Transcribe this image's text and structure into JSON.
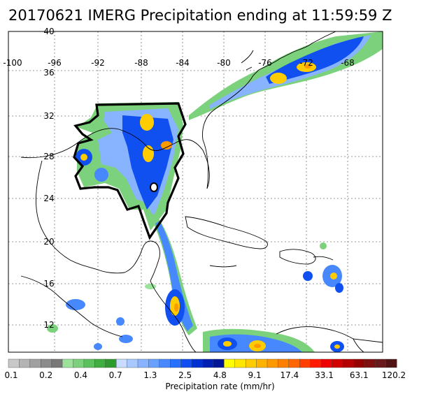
{
  "title": "20170621 IMERG Precipitation ending at 11:59:59 Z",
  "map": {
    "lon_labels": [
      "-100",
      "-96",
      "-92",
      "-88",
      "-84",
      "-80",
      "-76",
      "-72",
      "-68"
    ],
    "lat_labels": [
      "40",
      "36",
      "32",
      "28",
      "24",
      "20",
      "16",
      "12"
    ],
    "lon_range": [
      -100,
      -66
    ],
    "lat_range": [
      10,
      40
    ]
  },
  "colorbar": {
    "title": "Precipitation rate (mm/hr)",
    "labels": [
      "0.1",
      "0.2",
      "0.4",
      "0.7",
      "1.3",
      "2.5",
      "4.8",
      "9.1",
      "17.4",
      "33.1",
      "63.1",
      "120.2"
    ],
    "colors": [
      "#c8c8c8",
      "#b4b4b4",
      "#a0a0a0",
      "#8c8c8c",
      "#787878",
      "#9be39b",
      "#7cd27c",
      "#5cc05c",
      "#40ad40",
      "#2d9a2d",
      "#c8dcff",
      "#a8c8ff",
      "#88b4ff",
      "#68a0ff",
      "#4888ff",
      "#2870ff",
      "#1050f0",
      "#0032d2",
      "#0020b4",
      "#001696",
      "#ffff00",
      "#ffe600",
      "#ffcc00",
      "#ffb300",
      "#ff9900",
      "#ff7f00",
      "#ff6600",
      "#ff4000",
      "#ff1a00",
      "#ee0000",
      "#d00000",
      "#b40000",
      "#960000",
      "#801010",
      "#6a1a1a",
      "#501414"
    ]
  }
}
